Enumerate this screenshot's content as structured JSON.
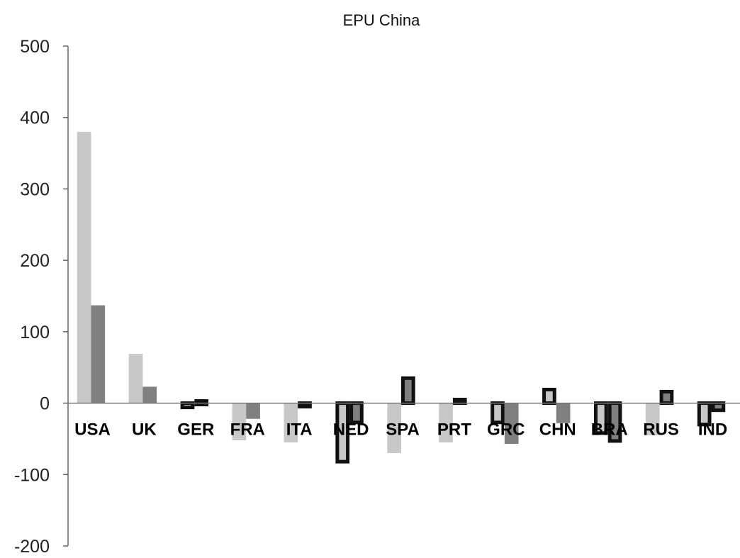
{
  "chart_data": {
    "type": "bar",
    "title": "EPU China",
    "xlabel": "",
    "ylabel": "",
    "categories": [
      "USA",
      "UK",
      "GER",
      "FRA",
      "ITA",
      "NED",
      "SPA",
      "PRT",
      "GRC",
      "CHN",
      "BRA",
      "RUS",
      "IND"
    ],
    "ylim": [
      -200,
      500
    ],
    "yticks": [
      500,
      400,
      300,
      200,
      100,
      0,
      -100,
      -200
    ],
    "series": [
      {
        "color": "#c8c8c8",
        "values": [
          380,
          69,
          -6,
          -52,
          -55,
          -82,
          -70,
          -55,
          -27,
          19,
          -42,
          -45,
          -30
        ],
        "outlined": [
          false,
          false,
          true,
          false,
          false,
          true,
          false,
          false,
          true,
          true,
          true,
          false,
          true
        ]
      },
      {
        "color": "#808080",
        "values": [
          137,
          23,
          3,
          -22,
          -3,
          -27,
          35,
          5,
          -57,
          -28,
          -53,
          16,
          -10
        ],
        "outlined": [
          false,
          false,
          true,
          false,
          true,
          true,
          true,
          true,
          false,
          false,
          true,
          true,
          true
        ]
      }
    ],
    "grid": false,
    "legend": "none"
  }
}
